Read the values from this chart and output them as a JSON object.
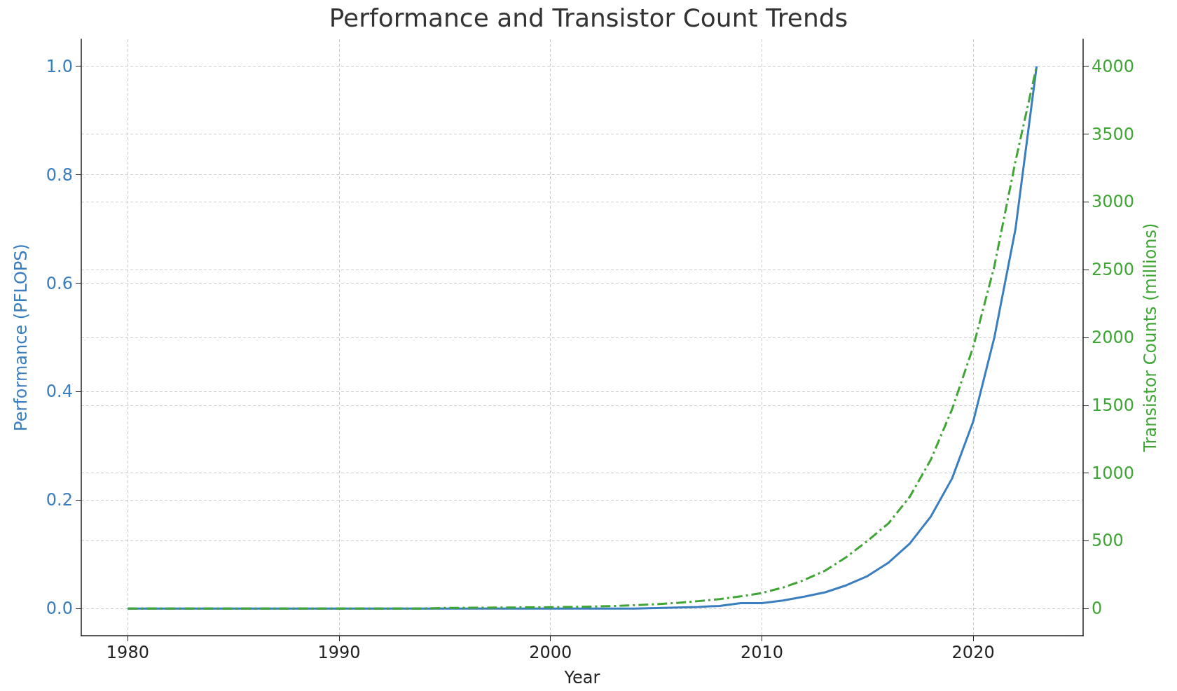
{
  "chart_data": {
    "type": "line",
    "title": "Performance and Transistor Count Trends",
    "xlabel": "Year",
    "ylabel": "Performance (PFLOPS)",
    "y2label": "Transistor Counts (millions)",
    "x": [
      1980,
      1981,
      1982,
      1983,
      1984,
      1985,
      1986,
      1987,
      1988,
      1989,
      1990,
      1991,
      1992,
      1993,
      1994,
      1995,
      1996,
      1997,
      1998,
      1999,
      2000,
      2001,
      2002,
      2003,
      2004,
      2005,
      2006,
      2007,
      2008,
      2009,
      2010,
      2011,
      2012,
      2013,
      2014,
      2015,
      2016,
      2017,
      2018,
      2019,
      2020,
      2021,
      2022,
      2023
    ],
    "series": [
      {
        "name": null,
        "color": "#3a7ebf",
        "line_style": "solid",
        "values": [
          0,
          0,
          0,
          0,
          0,
          0,
          0,
          0,
          0,
          0,
          0,
          0,
          0,
          0,
          0,
          0,
          0,
          0,
          0,
          0,
          0,
          0,
          0,
          0,
          0,
          0.001,
          0.002,
          0.003,
          0.005,
          0.01,
          0.01,
          0.015,
          0.022,
          0.03,
          0.043,
          0.06,
          0.085,
          0.12,
          0.17,
          0.24,
          0.345,
          0.5,
          0.7,
          1.0
        ]
      },
      {
        "name": null,
        "color": "#3fa535",
        "line_style": "dashed",
        "axis": "y2",
        "values": [
          0,
          0,
          0,
          0,
          0,
          0,
          0,
          0,
          0,
          0,
          0,
          0,
          0,
          0,
          0,
          5,
          6,
          7,
          8,
          9,
          10,
          12,
          15,
          19,
          25,
          32,
          42,
          55,
          70,
          90,
          115,
          155,
          210,
          280,
          380,
          500,
          630,
          825,
          1100,
          1470,
          1930,
          2525,
          3300,
          4000
        ]
      }
    ],
    "xlim": [
      1977.8,
      2025.2
    ],
    "xticks": [
      1980,
      1990,
      2000,
      2010,
      2020
    ],
    "ylim": [
      -0.05,
      1.05
    ],
    "yticks": [
      {
        "value": 0,
        "label": "0.0"
      },
      {
        "value": 0.2,
        "label": "0.2"
      },
      {
        "value": 0.4,
        "label": "0.4"
      },
      {
        "value": 0.6,
        "label": "0.6"
      },
      {
        "value": 0.8,
        "label": "0.8"
      },
      {
        "value": 1,
        "label": "1.0"
      }
    ],
    "y2lim": [
      -200,
      4200
    ],
    "y2ticks": [
      0,
      500,
      1000,
      1500,
      2000,
      2500,
      3000,
      3500,
      4000
    ],
    "grid": true,
    "marker": "none"
  }
}
